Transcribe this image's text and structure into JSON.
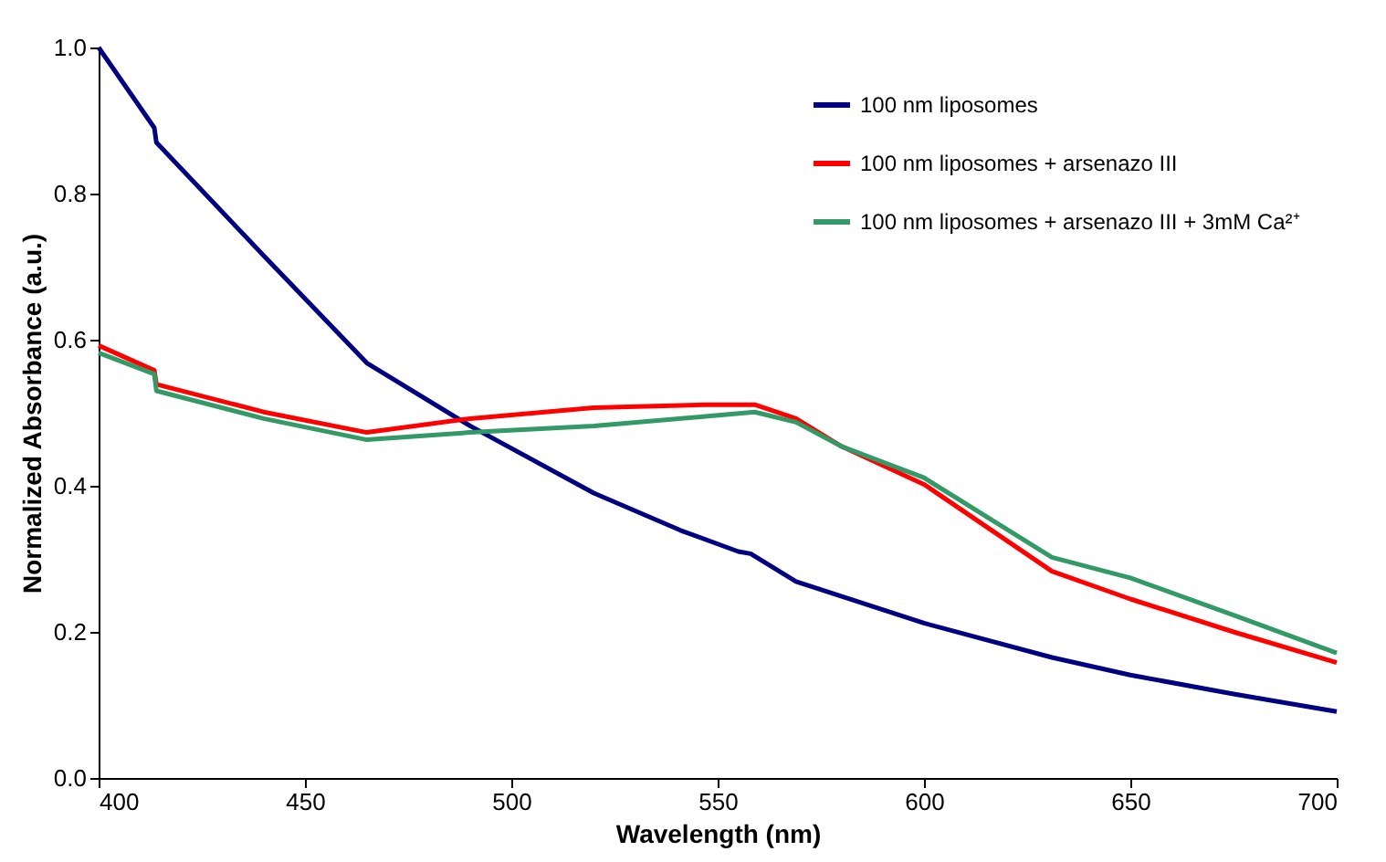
{
  "chart_data": {
    "type": "line",
    "xlabel": "Wavelength (nm)",
    "ylabel": "Normalized Absorbance (a.u.)",
    "xlim": [
      400,
      700
    ],
    "xticks": [
      400,
      450,
      500,
      550,
      600,
      650,
      700
    ],
    "ylim": [
      0,
      1
    ],
    "yticks": [
      {
        "value": 0,
        "label": "0.0"
      },
      {
        "value": 0.2,
        "label": "0.2"
      },
      {
        "value": 0.4,
        "label": "0.4"
      },
      {
        "value": 0.6,
        "label": "0.6"
      },
      {
        "value": 0.8,
        "label": "0.8"
      },
      {
        "value": 1,
        "label": "1.0"
      }
    ],
    "grid": false,
    "legend": "top right",
    "marker": "none",
    "line_style": "solid",
    "series": [
      {
        "name": "100 nm liposomes",
        "color": "#000080",
        "x": [
          400,
          413.5,
          414,
          440,
          465,
          490,
          520,
          541,
          555,
          558,
          569,
          600,
          631,
          650,
          675,
          700
        ],
        "values": [
          1.0,
          0.89,
          0.87,
          0.715,
          0.568,
          0.482,
          0.39,
          0.339,
          0.31,
          0.307,
          0.269,
          0.212,
          0.165,
          0.141,
          0.115,
          0.091
        ]
      },
      {
        "name": "100 nm liposomes + arsenazo III",
        "color": "#ff0000",
        "x": [
          400,
          413.5,
          414,
          440,
          465,
          490,
          520,
          547,
          559,
          569,
          580,
          600,
          631,
          650,
          675,
          700
        ],
        "values": [
          0.592,
          0.558,
          0.539,
          0.501,
          0.473,
          0.492,
          0.507,
          0.511,
          0.511,
          0.492,
          0.454,
          0.402,
          0.283,
          0.245,
          0.2,
          0.158
        ]
      },
      {
        "name": "100 nm liposomes + arsenazo III + 3mM Ca²⁺",
        "color": "#339966",
        "x": [
          400,
          413.5,
          414,
          440,
          465,
          490,
          520,
          547,
          559,
          569,
          580,
          600,
          631,
          650,
          675,
          700
        ],
        "values": [
          0.582,
          0.553,
          0.53,
          0.492,
          0.463,
          0.473,
          0.482,
          0.495,
          0.501,
          0.487,
          0.454,
          0.411,
          0.302,
          0.274,
          0.223,
          0.171
        ]
      }
    ]
  }
}
